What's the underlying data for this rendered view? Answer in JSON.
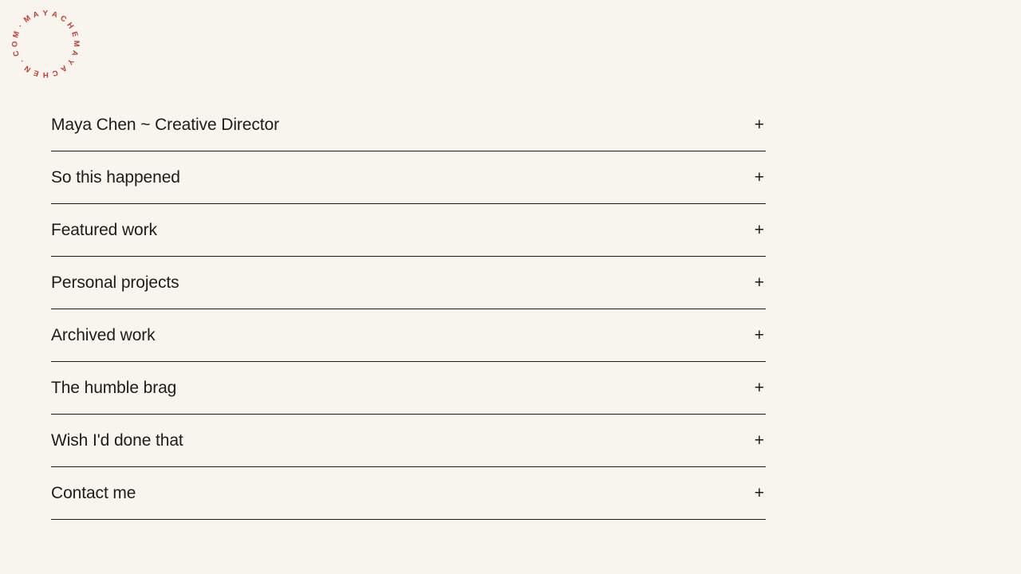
{
  "page": {
    "background_color": "#f7f5ee",
    "text_color": "#1d1c19"
  },
  "logo": {
    "text": "·MAYACHEMAYACHEN.COM",
    "color": "#c8382a"
  },
  "accordion": {
    "expand_symbol": "+",
    "items": [
      {
        "label": "Maya Chen ~ Creative Director"
      },
      {
        "label": "So this happened"
      },
      {
        "label": "Featured work"
      },
      {
        "label": "Personal projects"
      },
      {
        "label": "Archived work"
      },
      {
        "label": "The humble brag"
      },
      {
        "label": "Wish I'd done that"
      },
      {
        "label": "Contact me"
      }
    ]
  }
}
